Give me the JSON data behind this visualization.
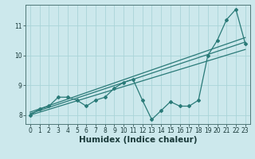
{
  "xlabel": "Humidex (Indice chaleur)",
  "ylabel": "",
  "bg_color": "#cce8ec",
  "grid_color": "#aad4d8",
  "line_color": "#2a7a78",
  "xlim": [
    -0.5,
    23.5
  ],
  "ylim": [
    7.7,
    11.7
  ],
  "xticks": [
    0,
    1,
    2,
    3,
    4,
    5,
    6,
    7,
    8,
    9,
    10,
    11,
    12,
    13,
    14,
    15,
    16,
    17,
    18,
    19,
    20,
    21,
    22,
    23
  ],
  "yticks": [
    8,
    9,
    10,
    11
  ],
  "main_y": [
    8.0,
    8.2,
    8.3,
    8.6,
    8.6,
    8.5,
    8.3,
    8.5,
    8.6,
    8.9,
    9.1,
    9.2,
    8.5,
    7.85,
    8.15,
    8.45,
    8.3,
    8.3,
    8.5,
    10.0,
    10.5,
    11.2,
    11.55,
    10.4
  ],
  "trend1_x": [
    0,
    23
  ],
  "trend1_y": [
    8.05,
    10.45
  ],
  "trend2_x": [
    0,
    23
  ],
  "trend2_y": [
    8.0,
    10.2
  ],
  "trend3_x": [
    0,
    23
  ],
  "trend3_y": [
    8.1,
    10.6
  ],
  "fontsize_tick": 5.5,
  "fontsize_label": 7.5
}
